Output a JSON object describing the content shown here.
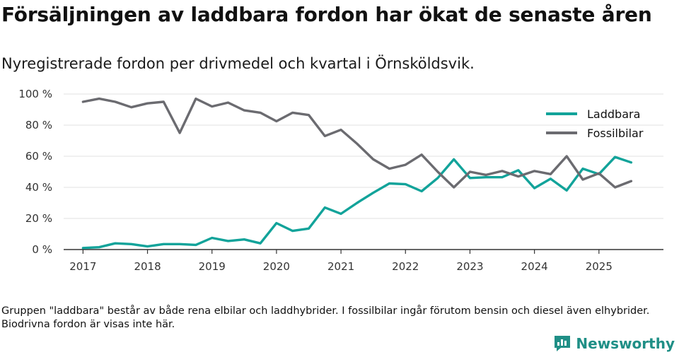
{
  "header": {
    "title": "Försäljningen av laddbara fordon har ökat de senaste åren",
    "subtitle": "Nyregistrerade fordon per drivmedel och kvartal i Örnsköldsvik."
  },
  "footnote": "Gruppen \"laddbara\" består av både rena elbilar och laddhybrider. I fossilbilar ingår förutom bensin och diesel även elhybrider. Biodrivna fordon är visas inte här.",
  "brand": {
    "name": "Newsworthy",
    "color": "#1f8f86"
  },
  "colors": {
    "laddbara": "#12a39a",
    "fossil": "#6b6b70",
    "grid": "#e0e0e0",
    "axis": "#333333"
  },
  "chart_data": {
    "type": "line",
    "title": "Försäljningen av laddbara fordon har ökat de senaste åren",
    "xlabel": "",
    "ylabel": "",
    "ylim": [
      0,
      100
    ],
    "xlim": [
      2016.7,
      2026.0
    ],
    "y_ticks": [
      0,
      20,
      40,
      60,
      80,
      100
    ],
    "y_tick_labels": [
      "0 %",
      "20 %",
      "40 %",
      "60 %",
      "80 %",
      "100 %"
    ],
    "x_ticks": [
      2017,
      2018,
      2019,
      2020,
      2021,
      2022,
      2023,
      2024,
      2025
    ],
    "x_tick_labels": [
      "2017",
      "2018",
      "2019",
      "2020",
      "2021",
      "2022",
      "2023",
      "2024",
      "2025"
    ],
    "legend_position": "top-right",
    "x": [
      2017.0,
      2017.25,
      2017.5,
      2017.75,
      2018.0,
      2018.25,
      2018.5,
      2018.75,
      2019.0,
      2019.25,
      2019.5,
      2019.75,
      2020.0,
      2020.25,
      2020.5,
      2020.75,
      2021.0,
      2021.25,
      2021.5,
      2021.75,
      2022.0,
      2022.25,
      2022.5,
      2022.75,
      2023.0,
      2023.25,
      2023.5,
      2023.75,
      2024.0,
      2024.25,
      2024.5,
      2024.75,
      2025.0,
      2025.25,
      2025.5
    ],
    "series": [
      {
        "name": "Laddbara",
        "values": [
          1,
          1.5,
          4,
          3.5,
          2,
          3.5,
          3.5,
          3,
          7.5,
          5.5,
          6.5,
          4,
          17,
          12,
          13.5,
          27,
          23,
          30,
          36.5,
          42.5,
          42,
          37.5,
          46,
          58,
          46,
          46.5,
          46.5,
          51,
          39.5,
          45.5,
          38,
          52,
          48.5,
          59.5,
          56
        ]
      },
      {
        "name": "Fossilbilar",
        "values": [
          95,
          97,
          95,
          91.5,
          94,
          95,
          75,
          97,
          92,
          94.5,
          89.5,
          88,
          82.5,
          88,
          86.5,
          73,
          77,
          68,
          58,
          52,
          54.5,
          61,
          50,
          40,
          50,
          48,
          50.5,
          47,
          50.5,
          48.5,
          60,
          45,
          49,
          40,
          44
        ]
      }
    ]
  }
}
